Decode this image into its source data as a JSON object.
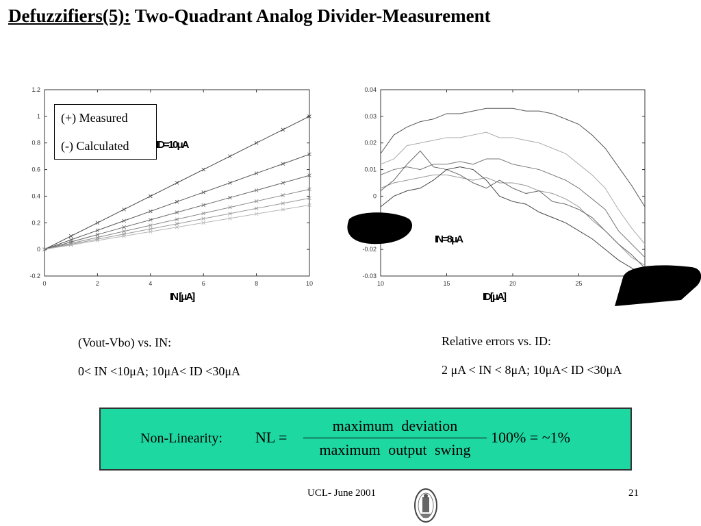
{
  "title": {
    "underlined": "Defuzzifiers(5):",
    "rest": " Two-Quadrant Analog Divider-Measurement"
  },
  "legend": {
    "measured": "(+) Measured",
    "calculated": "(-) Calculated"
  },
  "captions": {
    "left_line1": "(Vout-Vbo) vs. IN:",
    "left_line2": "0< IN <10μA;  10μA< ID <30μA",
    "right_line1": "Relative errors  vs. ID:",
    "right_line2": "2 μA < IN < 8μA;  10μA< ID <30μA"
  },
  "formula": {
    "label": "Non-Linearity:",
    "lhs": "NL =",
    "numerator": "maximum deviation",
    "denominator": "maximum output swing",
    "tail": "100% = ~1%"
  },
  "footer": {
    "center": "UCL- June 2001",
    "page": "21"
  },
  "colors": {
    "formula_bg": "#1ed8a2",
    "axes": "#333333",
    "series_dark": "#444444",
    "series_light": "#aaaaaa"
  },
  "chart_data": [
    {
      "type": "line",
      "title": "",
      "xlabel": "IN [μA]",
      "ylabel": "",
      "xlim": [
        0,
        10
      ],
      "ylim": [
        -0.2,
        1.2
      ],
      "xticks": [
        0,
        2,
        4,
        6,
        8,
        10
      ],
      "yticks": [
        -0.2,
        0,
        0.2,
        0.4,
        0.6,
        0.8,
        1,
        1.2
      ],
      "yticklabels": [
        "-0.2",
        "0",
        "0.2",
        "0.4",
        "0.6",
        "0.8",
        "1",
        "1.2"
      ],
      "annotations": [
        "ID=10μA"
      ],
      "x": [
        0,
        1,
        2,
        3,
        4,
        5,
        6,
        7,
        8,
        9,
        10
      ],
      "series": [
        {
          "values": [
            0,
            0.1,
            0.2,
            0.3,
            0.4,
            0.5,
            0.6,
            0.7,
            0.8,
            0.9,
            1.0
          ]
        },
        {
          "values": [
            0,
            0.072,
            0.143,
            0.215,
            0.286,
            0.358,
            0.429,
            0.5,
            0.572,
            0.643,
            0.715
          ]
        },
        {
          "values": [
            0,
            0.056,
            0.111,
            0.167,
            0.222,
            0.278,
            0.333,
            0.389,
            0.444,
            0.5,
            0.556
          ]
        },
        {
          "values": [
            0,
            0.045,
            0.09,
            0.136,
            0.181,
            0.226,
            0.271,
            0.316,
            0.362,
            0.407,
            0.452
          ]
        },
        {
          "values": [
            0,
            0.038,
            0.077,
            0.115,
            0.154,
            0.192,
            0.231,
            0.269,
            0.308,
            0.346,
            0.385
          ]
        },
        {
          "values": [
            0,
            0.033,
            0.067,
            0.1,
            0.133,
            0.167,
            0.2,
            0.233,
            0.267,
            0.3,
            0.333
          ]
        }
      ]
    },
    {
      "type": "line",
      "title": "",
      "xlabel": "ID[μA]",
      "ylabel": "",
      "xlim": [
        10,
        30
      ],
      "ylim": [
        -0.03,
        0.04
      ],
      "xticks": [
        10,
        15,
        20,
        25,
        30
      ],
      "xticklabels": [
        "10",
        "15",
        "20",
        "25",
        ""
      ],
      "yticks": [
        -0.03,
        -0.02,
        -0.01,
        0,
        0.01,
        0.02,
        0.03,
        0.04
      ],
      "yticklabels": [
        "-0.03",
        "-0.02",
        "-0.01",
        "0",
        "0.01",
        "0.02",
        "0.03",
        "0.04"
      ],
      "annotations": [
        "IN=8μA"
      ],
      "x": [
        10,
        11,
        12,
        13,
        14,
        15,
        16,
        17,
        18,
        19,
        20,
        21,
        22,
        23,
        24,
        25,
        26,
        27,
        28,
        29,
        30
      ],
      "series": [
        {
          "values": [
            0.016,
            0.023,
            0.026,
            0.028,
            0.029,
            0.031,
            0.031,
            0.032,
            0.033,
            0.033,
            0.033,
            0.032,
            0.032,
            0.031,
            0.029,
            0.027,
            0.023,
            0.018,
            0.011,
            0.004,
            -0.004
          ]
        },
        {
          "values": [
            0.012,
            0.014,
            0.019,
            0.02,
            0.021,
            0.022,
            0.022,
            0.023,
            0.024,
            0.022,
            0.022,
            0.021,
            0.02,
            0.018,
            0.016,
            0.012,
            0.008,
            0.003,
            -0.005,
            -0.012,
            -0.018
          ]
        },
        {
          "values": [
            0.008,
            0.01,
            0.011,
            0.01,
            0.012,
            0.012,
            0.013,
            0.012,
            0.014,
            0.014,
            0.012,
            0.011,
            0.01,
            0.008,
            0.006,
            0.003,
            -0.001,
            -0.005,
            -0.013,
            -0.018,
            -0.023
          ]
        },
        {
          "values": [
            0.003,
            0.005,
            0.006,
            0.007,
            0.008,
            0.008,
            0.007,
            0.006,
            0.007,
            0.005,
            0.005,
            0.004,
            0.002,
            0.001,
            -0.001,
            -0.004,
            -0.009,
            -0.013,
            -0.018,
            -0.023,
            -0.026
          ]
        },
        {
          "values": [
            0.002,
            0.006,
            0.012,
            0.017,
            0.011,
            0.01,
            0.008,
            0.005,
            0.003,
            0.006,
            0.003,
            0.001,
            0.002,
            -0.002,
            -0.003,
            -0.005,
            -0.008,
            -0.013,
            -0.018,
            -0.022,
            -0.027
          ]
        },
        {
          "values": [
            -0.004,
            0,
            0.002,
            0.003,
            0.006,
            0.01,
            0.011,
            0.01,
            0.006,
            0,
            -0.002,
            -0.003,
            -0.006,
            -0.008,
            -0.01,
            -0.013,
            -0.016,
            -0.02,
            -0.024,
            -0.027,
            -0.03
          ]
        }
      ]
    }
  ]
}
